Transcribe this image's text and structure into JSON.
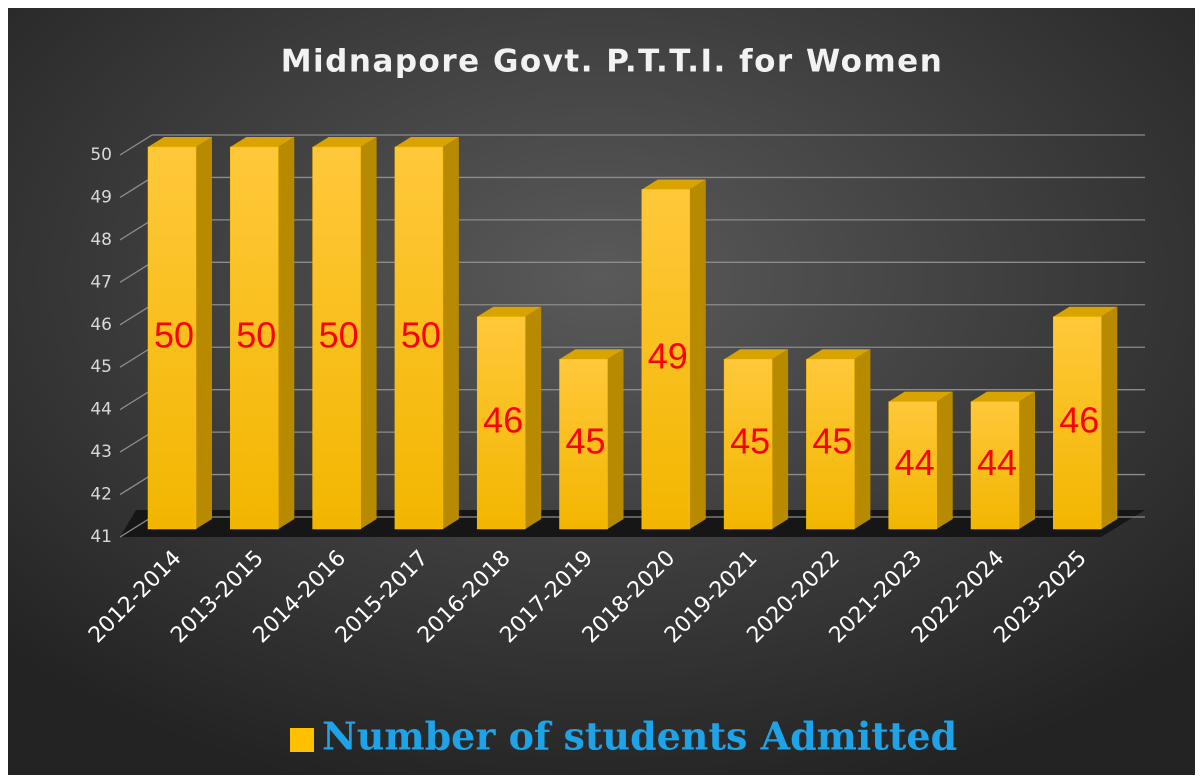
{
  "chart_data": {
    "type": "bar",
    "title": "Midnapore Govt. P.T.T.I. for Women",
    "categories": [
      "2012-2014",
      "2013-2015",
      "2014-2016",
      "2015-2017",
      "2016-2018",
      "2017-2019",
      "2018-2020",
      "2019-2021",
      "2020-2022",
      "2021-2023",
      "2022-2024",
      "2023-2025"
    ],
    "series": [
      {
        "name": "Number of students Admitted",
        "color": "#ffc000",
        "values": [
          50,
          50,
          50,
          50,
          46,
          45,
          49,
          45,
          45,
          44,
          44,
          46
        ]
      }
    ],
    "ylim": [
      41,
      50
    ],
    "yticks": [
      41,
      42,
      43,
      44,
      45,
      46,
      47,
      48,
      49,
      50
    ],
    "grid": true,
    "legend": "bottom"
  }
}
